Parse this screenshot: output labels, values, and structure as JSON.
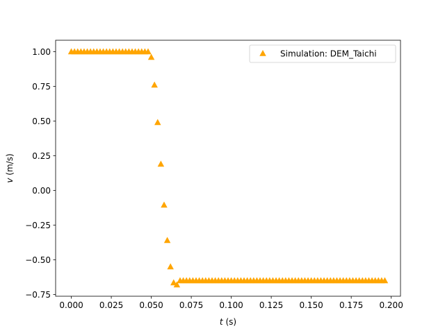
{
  "chart_data": {
    "type": "scatter",
    "title": "",
    "xlabel_var": "t",
    "xlabel_unit": " (s)",
    "ylabel_var": "v",
    "ylabel_unit": " (m/s)",
    "xlim": [
      -0.0098,
      0.2058
    ],
    "ylim": [
      -0.7625,
      1.0825
    ],
    "xticks": [
      0.0,
      0.025,
      0.05,
      0.075,
      0.1,
      0.125,
      0.15,
      0.175,
      0.2
    ],
    "xtick_labels": [
      "0.000",
      "0.025",
      "0.050",
      "0.075",
      "0.100",
      "0.125",
      "0.150",
      "0.175",
      "0.200"
    ],
    "yticks": [
      -0.75,
      -0.5,
      -0.25,
      0.0,
      0.25,
      0.5,
      0.75,
      1.0
    ],
    "ytick_labels": [
      "−0.75",
      "−0.50",
      "−0.25",
      "0.00",
      "0.25",
      "0.50",
      "0.75",
      "1.00"
    ],
    "grid": false,
    "legend_position": "top-right",
    "series": [
      {
        "name": "Simulation: DEM_Taichi",
        "marker": "triangle-up",
        "color": "#FFA500",
        "x": [
          0.0,
          0.002,
          0.004,
          0.006,
          0.008,
          0.01,
          0.012,
          0.014,
          0.016,
          0.018,
          0.02,
          0.022,
          0.024,
          0.026,
          0.028,
          0.03,
          0.032,
          0.034,
          0.036,
          0.038,
          0.04,
          0.042,
          0.044,
          0.046,
          0.048,
          0.05,
          0.052,
          0.054,
          0.056,
          0.058,
          0.06,
          0.062,
          0.064,
          0.066,
          0.068,
          0.07,
          0.072,
          0.074,
          0.076,
          0.078,
          0.08,
          0.082,
          0.084,
          0.086,
          0.088,
          0.09,
          0.092,
          0.094,
          0.096,
          0.098,
          0.1,
          0.102,
          0.104,
          0.106,
          0.108,
          0.11,
          0.112,
          0.114,
          0.116,
          0.118,
          0.12,
          0.122,
          0.124,
          0.126,
          0.128,
          0.13,
          0.132,
          0.134,
          0.136,
          0.138,
          0.14,
          0.142,
          0.144,
          0.146,
          0.148,
          0.15,
          0.152,
          0.154,
          0.156,
          0.158,
          0.16,
          0.162,
          0.164,
          0.166,
          0.168,
          0.17,
          0.172,
          0.174,
          0.176,
          0.178,
          0.18,
          0.182,
          0.184,
          0.186,
          0.188,
          0.19,
          0.192,
          0.194,
          0.196
        ],
        "y": [
          1.0,
          1.0,
          1.0,
          1.0,
          1.0,
          1.0,
          1.0,
          1.0,
          1.0,
          1.0,
          1.0,
          1.0,
          1.0,
          1.0,
          1.0,
          1.0,
          1.0,
          1.0,
          1.0,
          1.0,
          1.0,
          1.0,
          1.0,
          1.0,
          1.0,
          0.96,
          0.76,
          0.49,
          0.19,
          -0.105,
          -0.36,
          -0.55,
          -0.665,
          -0.68,
          -0.65,
          -0.65,
          -0.65,
          -0.65,
          -0.65,
          -0.65,
          -0.65,
          -0.65,
          -0.65,
          -0.65,
          -0.65,
          -0.65,
          -0.65,
          -0.65,
          -0.65,
          -0.65,
          -0.65,
          -0.65,
          -0.65,
          -0.65,
          -0.65,
          -0.65,
          -0.65,
          -0.65,
          -0.65,
          -0.65,
          -0.65,
          -0.65,
          -0.65,
          -0.65,
          -0.65,
          -0.65,
          -0.65,
          -0.65,
          -0.65,
          -0.65,
          -0.65,
          -0.65,
          -0.65,
          -0.65,
          -0.65,
          -0.65,
          -0.65,
          -0.65,
          -0.65,
          -0.65,
          -0.65,
          -0.65,
          -0.65,
          -0.65,
          -0.65,
          -0.65,
          -0.65,
          -0.65,
          -0.65,
          -0.65,
          -0.65,
          -0.65,
          -0.65,
          -0.65,
          -0.65,
          -0.65,
          -0.65,
          -0.65,
          -0.65
        ]
      }
    ]
  }
}
